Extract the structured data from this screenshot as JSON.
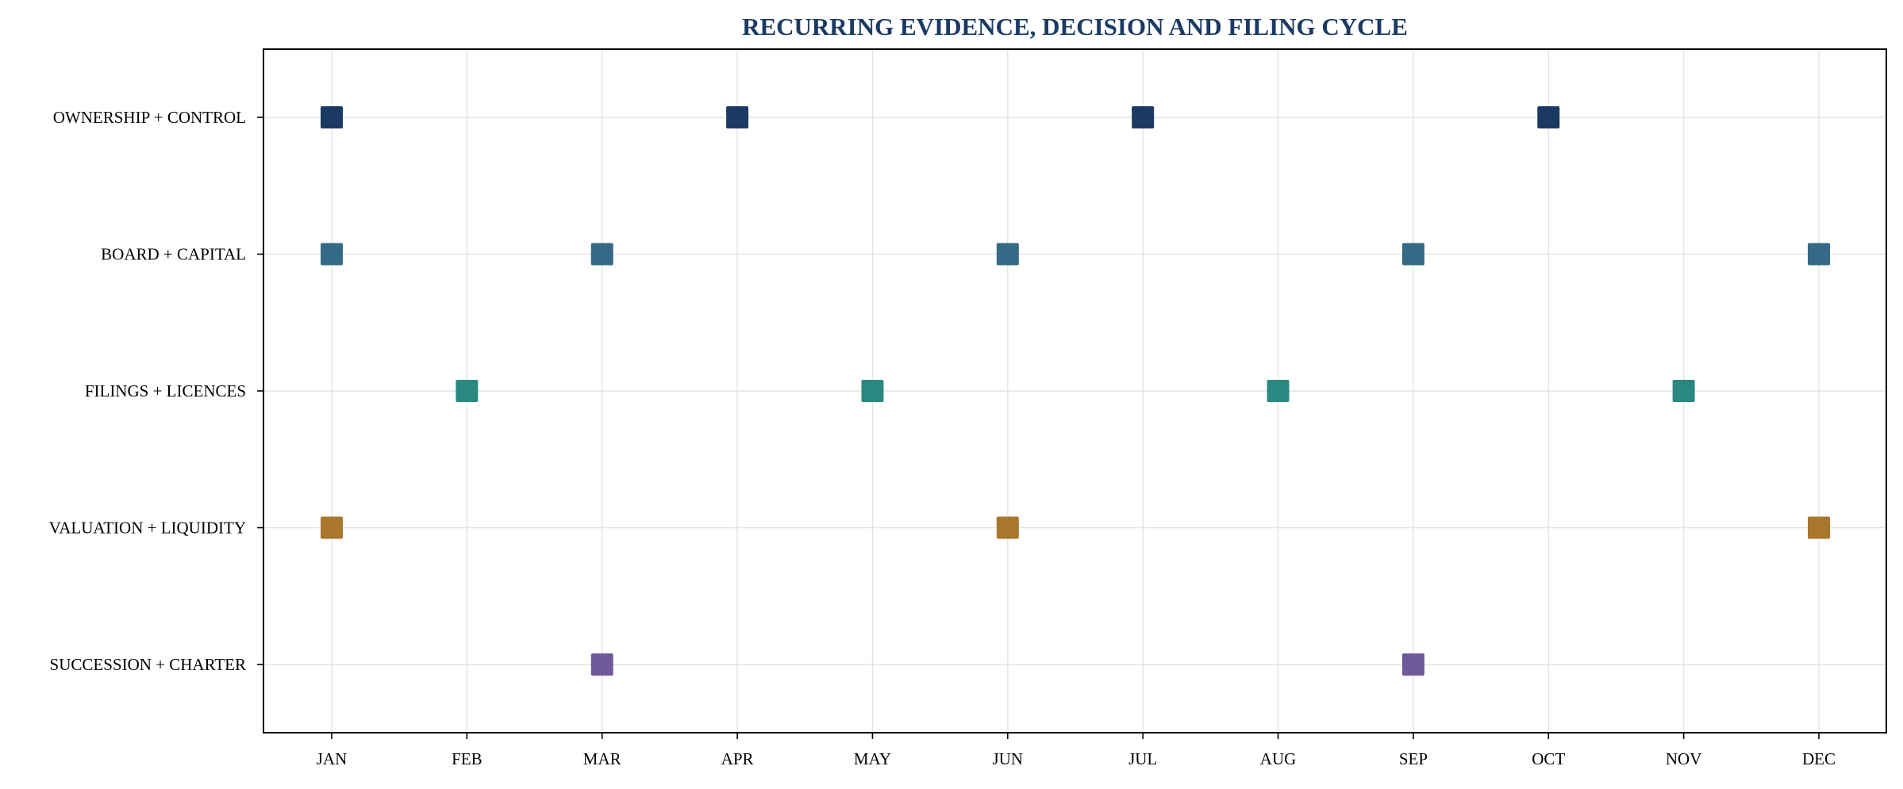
{
  "chart_data": {
    "type": "scatter",
    "title": "RECURRING EVIDENCE, DECISION AND FILING CYCLE",
    "xlabel": "",
    "ylabel": "",
    "x_categories": [
      "JAN",
      "FEB",
      "MAR",
      "APR",
      "MAY",
      "JUN",
      "JUL",
      "AUG",
      "SEP",
      "OCT",
      "NOV",
      "DEC"
    ],
    "y_categories": [
      "OWNERSHIP + CONTROL",
      "BOARD + CAPITAL",
      "FILINGS + LICENCES",
      "VALUATION + LIQUIDITY",
      "SUCCESSION + CHARTER"
    ],
    "grid": true,
    "legend": "none",
    "marker": "square",
    "series": [
      {
        "category": "OWNERSHIP + CONTROL",
        "color": "#1b3a63",
        "months": [
          "JAN",
          "APR",
          "JUL",
          "OCT"
        ]
      },
      {
        "category": "BOARD + CAPITAL",
        "color": "#356a87",
        "months": [
          "JAN",
          "MAR",
          "JUN",
          "SEP",
          "DEC"
        ]
      },
      {
        "category": "FILINGS + LICENCES",
        "color": "#2a8880",
        "months": [
          "FEB",
          "MAY",
          "AUG",
          "NOV"
        ]
      },
      {
        "category": "VALUATION + LIQUIDITY",
        "color": "#a8762c",
        "months": [
          "JAN",
          "JUN",
          "DEC"
        ]
      },
      {
        "category": "SUCCESSION + CHARTER",
        "color": "#6e5a9a",
        "months": [
          "MAR",
          "SEP"
        ]
      }
    ],
    "colors": {
      "title": "#1b3a63",
      "grid": "#e3e3e3",
      "axis": "#000000"
    }
  }
}
